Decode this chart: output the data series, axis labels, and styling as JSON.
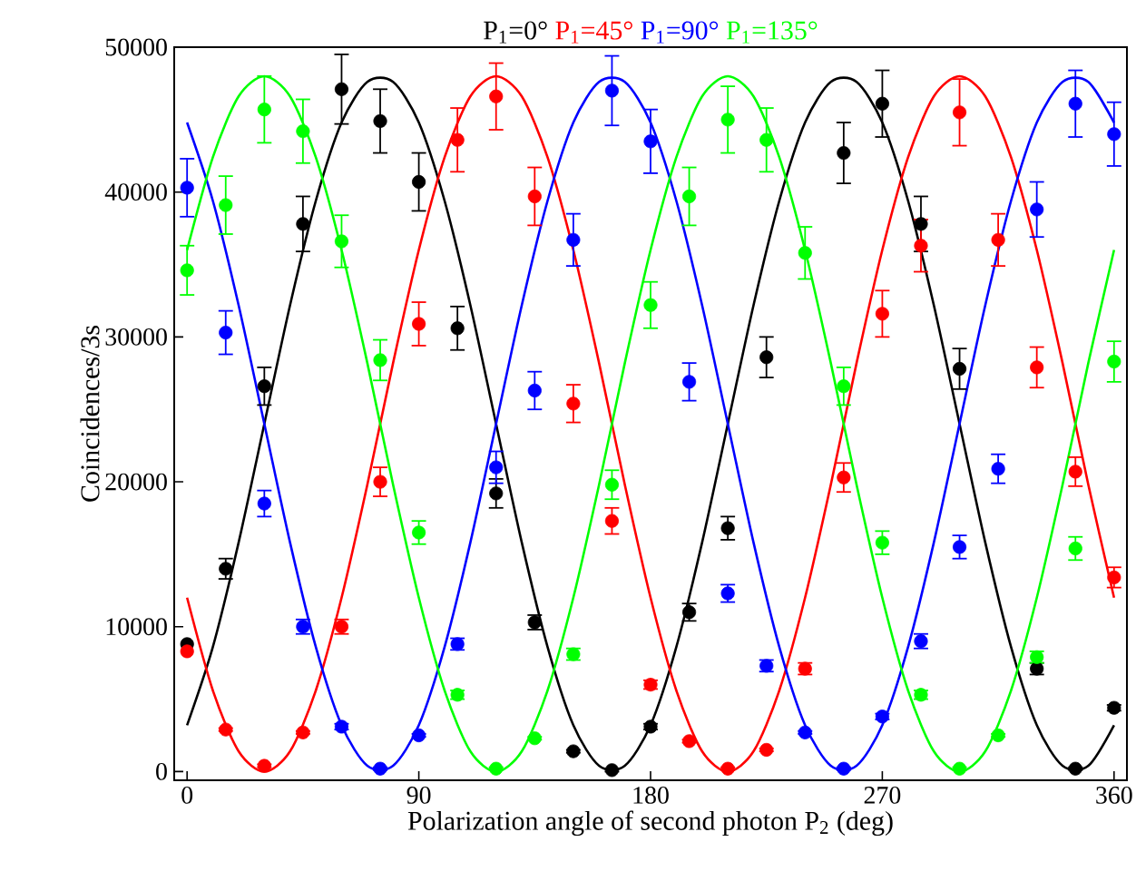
{
  "chart_data": {
    "type": "scatter",
    "xlabel": "Polarization angle of second photon P$_{2}$ (deg)",
    "ylabel": "Coincidences/3s",
    "xlim": [
      -5,
      365
    ],
    "ylim": [
      -600,
      50000
    ],
    "xticks": [
      0,
      90,
      180,
      270,
      360
    ],
    "yticks": [
      0,
      10000,
      20000,
      30000,
      40000,
      50000
    ],
    "legend": "top",
    "x": [
      0,
      15,
      30,
      45,
      60,
      75,
      90,
      105,
      120,
      135,
      150,
      165,
      180,
      195,
      210,
      225,
      240,
      255,
      270,
      285,
      300,
      315,
      330,
      345,
      360
    ],
    "series": [
      {
        "name": "P$_{1}$=0°",
        "marker": "circle",
        "color": "#000000",
        "values": [
          8800,
          14000,
          26600,
          37800,
          47100,
          44900,
          40700,
          30600,
          19200,
          10300,
          1400,
          100,
          3100,
          11000,
          16800,
          28600,
          null,
          42700,
          46100,
          37800,
          27800,
          null,
          7100,
          200,
          4400
        ],
        "errors": [
          null,
          700,
          1300,
          1900,
          2400,
          2200,
          2000,
          1500,
          1000,
          500,
          100,
          100,
          200,
          600,
          800,
          1400,
          null,
          2100,
          2300,
          1900,
          1400,
          null,
          400,
          100,
          200
        ]
      },
      {
        "name": "P$_{1}$=45°",
        "marker": "circle",
        "color": "#ff0000",
        "values": [
          8300,
          2900,
          400,
          2700,
          10000,
          20000,
          30900,
          43600,
          46600,
          39700,
          25400,
          17300,
          6000,
          2100,
          200,
          1500,
          7100,
          20300,
          31600,
          36300,
          45500,
          36700,
          27900,
          20700,
          13400
        ],
        "errors": [
          null,
          100,
          100,
          100,
          500,
          1000,
          1500,
          2200,
          2300,
          2000,
          1300,
          900,
          300,
          100,
          100,
          100,
          400,
          1000,
          1600,
          1800,
          2300,
          1800,
          1400,
          1000,
          700
        ]
      },
      {
        "name": "P$_{1}$=90°",
        "marker": "circle",
        "color": "#0000ff",
        "values": [
          40300,
          30300,
          18500,
          10000,
          3100,
          200,
          2500,
          8800,
          21000,
          26300,
          36700,
          47000,
          43500,
          26900,
          12300,
          7300,
          2700,
          200,
          3800,
          9000,
          15500,
          20900,
          38800,
          46100,
          44000
        ],
        "errors": [
          2000,
          1500,
          900,
          500,
          200,
          100,
          100,
          400,
          1100,
          1300,
          1800,
          2400,
          2200,
          1300,
          600,
          400,
          100,
          100,
          200,
          500,
          800,
          1000,
          1900,
          2300,
          2200
        ]
      },
      {
        "name": "P$_{1}$=135°",
        "marker": "circle",
        "color": "#00ff00",
        "values": [
          34600,
          39100,
          45700,
          44200,
          36600,
          28400,
          16500,
          5300,
          200,
          2300,
          8100,
          19800,
          32200,
          39700,
          45000,
          43600,
          35800,
          26600,
          15800,
          5300,
          200,
          2500,
          7900,
          15400,
          28300
        ],
        "errors": [
          1700,
          2000,
          2300,
          2200,
          1800,
          1400,
          800,
          300,
          100,
          100,
          400,
          1000,
          1600,
          2000,
          2300,
          2200,
          1800,
          1300,
          800,
          300,
          100,
          100,
          400,
          800,
          1400
        ]
      },
      {
        "type": "line",
        "marker": "none",
        "color": "#000000",
        "x": [
          0,
          10,
          20,
          30,
          40,
          50,
          60,
          70,
          80,
          90,
          100,
          110,
          120,
          130,
          140,
          150,
          160,
          170,
          180,
          190,
          200,
          210,
          220,
          230,
          240,
          250,
          260,
          270,
          280,
          290,
          300,
          310,
          320,
          330,
          340,
          350,
          360
        ],
        "values": [
          3200,
          8600,
          15800,
          24000,
          32200,
          39400,
          44800,
          47600,
          47600,
          44800,
          39400,
          32200,
          24000,
          15800,
          8600,
          3200,
          400,
          400,
          3200,
          8600,
          15800,
          24000,
          32200,
          39400,
          44800,
          47600,
          47600,
          44800,
          39400,
          32200,
          24000,
          15800,
          8600,
          3200,
          400,
          400,
          3200
        ]
      },
      {
        "type": "line",
        "marker": "none",
        "color": "#ff0000",
        "x": [
          0,
          10,
          20,
          30,
          40,
          50,
          60,
          70,
          80,
          90,
          100,
          110,
          120,
          130,
          140,
          150,
          160,
          170,
          180,
          190,
          200,
          210,
          220,
          230,
          240,
          250,
          260,
          270,
          280,
          290,
          300,
          310,
          320,
          330,
          340,
          350,
          360
        ],
        "values": [
          12000,
          5600,
          1400,
          0,
          1400,
          5600,
          12000,
          19800,
          28200,
          36000,
          42400,
          46600,
          48000,
          46600,
          42400,
          36000,
          28200,
          19800,
          12000,
          5600,
          1400,
          0,
          1400,
          5600,
          12000,
          19800,
          28200,
          36000,
          42400,
          46600,
          48000,
          46600,
          42400,
          36000,
          28200,
          19800,
          12000
        ]
      },
      {
        "type": "line",
        "marker": "none",
        "color": "#0000ff",
        "x": [
          0,
          10,
          20,
          30,
          40,
          50,
          60,
          70,
          80,
          90,
          100,
          110,
          120,
          130,
          140,
          150,
          160,
          170,
          180,
          190,
          200,
          210,
          220,
          230,
          240,
          250,
          260,
          270,
          280,
          290,
          300,
          310,
          320,
          330,
          340,
          350,
          360
        ],
        "values": [
          44800,
          39400,
          32200,
          24000,
          15800,
          8600,
          3200,
          400,
          400,
          3200,
          8600,
          15800,
          24000,
          32200,
          39400,
          44800,
          47600,
          47600,
          44800,
          39400,
          32200,
          24000,
          15800,
          8600,
          3200,
          400,
          400,
          3200,
          8600,
          15800,
          24000,
          32200,
          39400,
          44800,
          47600,
          47600,
          44800
        ]
      },
      {
        "type": "line",
        "marker": "none",
        "color": "#00ff00",
        "x": [
          0,
          10,
          20,
          30,
          40,
          50,
          60,
          70,
          80,
          90,
          100,
          110,
          120,
          130,
          140,
          150,
          160,
          170,
          180,
          190,
          200,
          210,
          220,
          230,
          240,
          250,
          260,
          270,
          280,
          290,
          300,
          310,
          320,
          330,
          340,
          350,
          360
        ],
        "values": [
          36000,
          42400,
          46600,
          48000,
          46600,
          42400,
          36000,
          28200,
          19800,
          12000,
          5600,
          1400,
          0,
          1400,
          5600,
          12000,
          19800,
          28200,
          36000,
          42400,
          46600,
          48000,
          46600,
          42400,
          36000,
          28200,
          19800,
          12000,
          5600,
          1400,
          0,
          1400,
          5600,
          12000,
          19800,
          28200,
          36000
        ]
      }
    ]
  }
}
